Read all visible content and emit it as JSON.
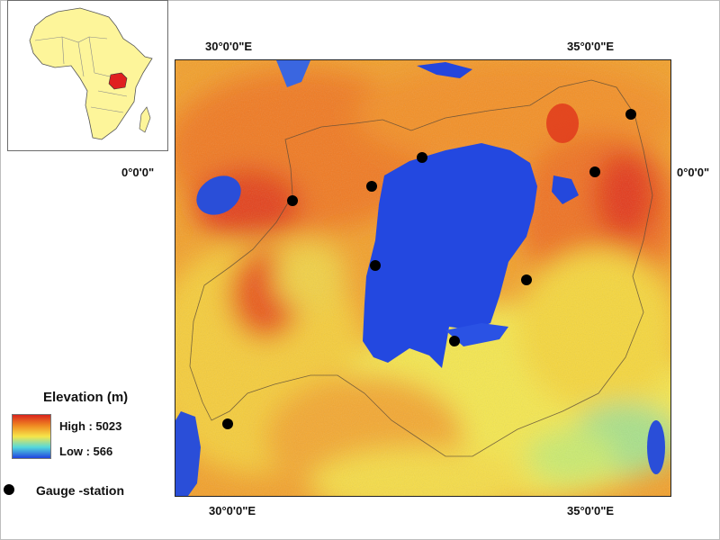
{
  "coords": {
    "top_left_lon": "30°0'0\"E",
    "top_right_lon": "35°0'0\"E",
    "bottom_left_lon": "30°0'0\"E",
    "bottom_right_lon": "35°0'0\"E",
    "left_lat": "0°0'0\"",
    "right_lat": "0°0'0\""
  },
  "legend": {
    "title": "Elevation (m)",
    "high_label": "High : 5023",
    "low_label": "Low : 566",
    "gauge_label": "Gauge -station"
  },
  "colors": {
    "high": "#d9241c",
    "mid_high": "#f08a22",
    "mid": "#f6e64a",
    "mid_low": "#54d8dc",
    "low": "#2043e0",
    "inset_land": "#fdf59a",
    "inset_highlight": "#e02020"
  },
  "gauge_stations": [
    {
      "lon": 30.8,
      "lat": -0.3
    },
    {
      "lon": 31.9,
      "lat": -0.1
    },
    {
      "lon": 32.6,
      "lat": 0.3
    },
    {
      "lon": 31.95,
      "lat": -1.2
    },
    {
      "lon": 35.0,
      "lat": 0.1
    },
    {
      "lon": 35.5,
      "lat": 0.9
    },
    {
      "lon": 34.05,
      "lat": -1.4
    },
    {
      "lon": 33.05,
      "lat": -2.25
    },
    {
      "lon": 29.9,
      "lat": -3.4
    }
  ]
}
